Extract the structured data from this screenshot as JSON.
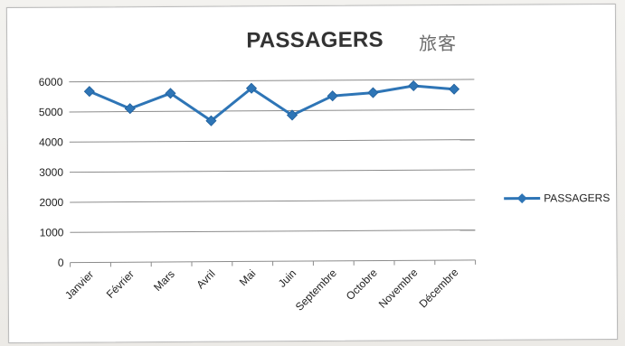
{
  "chart_data": {
    "type": "line",
    "title": "PASSAGERS",
    "annotation": "旅客",
    "xlabel": "",
    "ylabel": "",
    "categories": [
      "Janvier",
      "Février",
      "Mars",
      "Avril",
      "Mai",
      "Juin",
      "Septembre",
      "Octobre",
      "Novembre",
      "Décembre"
    ],
    "series": [
      {
        "name": "PASSAGERS",
        "values": [
          5680,
          5100,
          5600,
          4680,
          5750,
          4850,
          5480,
          5580,
          5800,
          5680
        ],
        "color": "#2e75b6",
        "marker": "diamond"
      }
    ],
    "ylim": [
      0,
      6000
    ],
    "yticks": [
      "0",
      "1000",
      "2000",
      "3000",
      "4000",
      "5000",
      "6000"
    ],
    "grid": true,
    "legend": "right"
  }
}
